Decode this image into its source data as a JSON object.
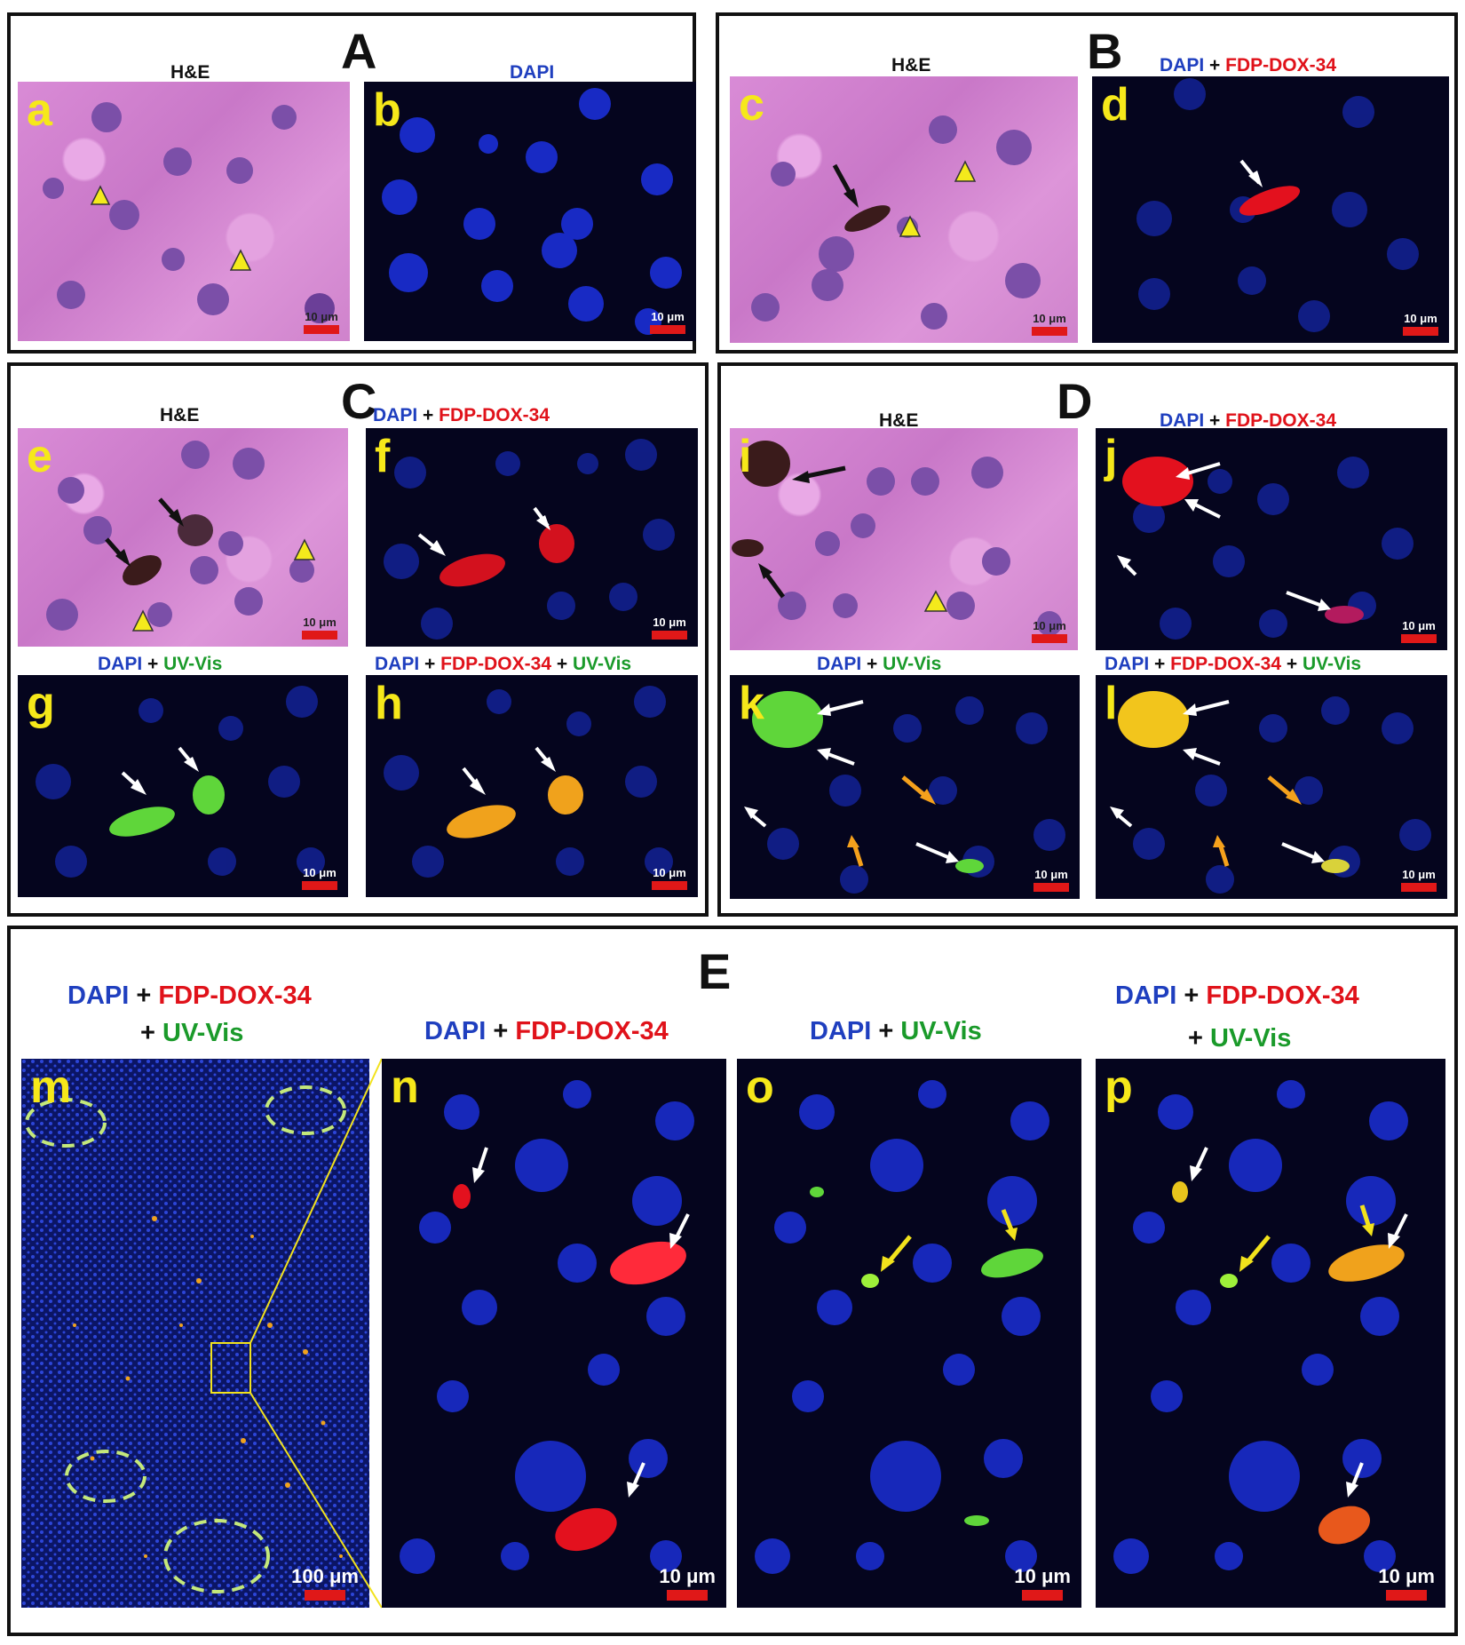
{
  "sections": {
    "A": "A",
    "B": "B",
    "C": "C",
    "D": "D",
    "E": "E"
  },
  "labels": {
    "he": "H&E",
    "dapi": "DAPI",
    "plus": "+",
    "fdp": "FDP-DOX-34",
    "uv": "UV-Vis"
  },
  "panels": {
    "a": "a",
    "b": "b",
    "c": "c",
    "d": "d",
    "e": "e",
    "f": "f",
    "g": "g",
    "h": "h",
    "i": "i",
    "j": "j",
    "k": "k",
    "l": "l",
    "m": "m",
    "n": "n",
    "o": "o",
    "p": "p"
  },
  "scale": {
    "small": "10 μm",
    "large": "100 μm"
  },
  "colors": {
    "dapi_blue": "#1f3fbf",
    "fdp_red": "#e0121a",
    "uv_green": "#1a9a2a",
    "panel_letter": "#f6e81a",
    "scale_bar": "#e01818",
    "he_pink": "#d98bd6",
    "fluor_bg": "#05051e"
  }
}
